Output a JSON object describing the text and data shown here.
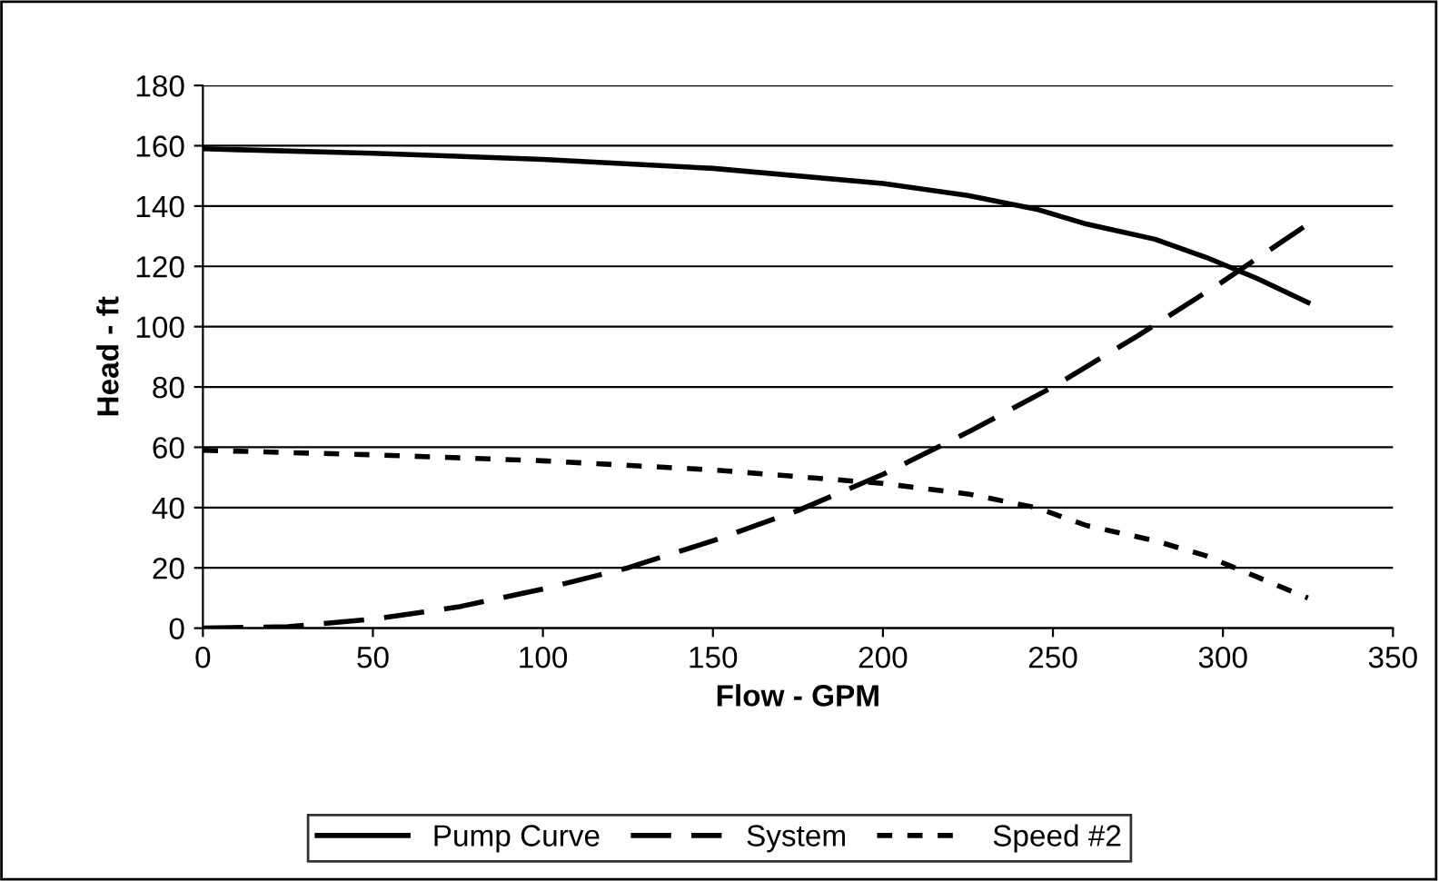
{
  "chart_data": {
    "type": "line",
    "xlabel": "Flow - GPM",
    "ylabel": "Head - ft",
    "xlim": [
      0,
      350
    ],
    "xticks": [
      0,
      50,
      100,
      150,
      200,
      250,
      300,
      350
    ],
    "ylim": [
      0,
      180
    ],
    "yticks": [
      0,
      20,
      40,
      60,
      80,
      100,
      120,
      140,
      160,
      180
    ],
    "grid": "y",
    "legend": "bottom",
    "marker": "none",
    "series": [
      {
        "name": "Pump Curve",
        "color": "#000000",
        "line_style": "solid",
        "x": [
          0,
          50,
          100,
          150,
          200,
          225,
          245,
          260,
          280,
          295,
          310,
          325
        ],
        "values": [
          159,
          157.5,
          155.5,
          152.5,
          147.5,
          143.5,
          139,
          134,
          129,
          123,
          116,
          108
        ]
      },
      {
        "name": "System",
        "color": "#000000",
        "line_style": "dashed",
        "x": [
          0,
          25,
          50,
          75,
          100,
          125,
          150,
          175,
          200,
          225,
          250,
          275,
          300,
          325
        ],
        "values": [
          0,
          0.5,
          3,
          7,
          13,
          20,
          29,
          39,
          51,
          65,
          80,
          97,
          115,
          134
        ]
      },
      {
        "name": "Speed #2",
        "color": "#000000",
        "line_style": "dotted",
        "x": [
          0,
          50,
          100,
          150,
          200,
          225,
          245,
          260,
          280,
          295,
          310,
          325
        ],
        "values": [
          59,
          57.5,
          55.5,
          52.5,
          48,
          44.5,
          40,
          34,
          29,
          24,
          17,
          10
        ]
      }
    ]
  }
}
